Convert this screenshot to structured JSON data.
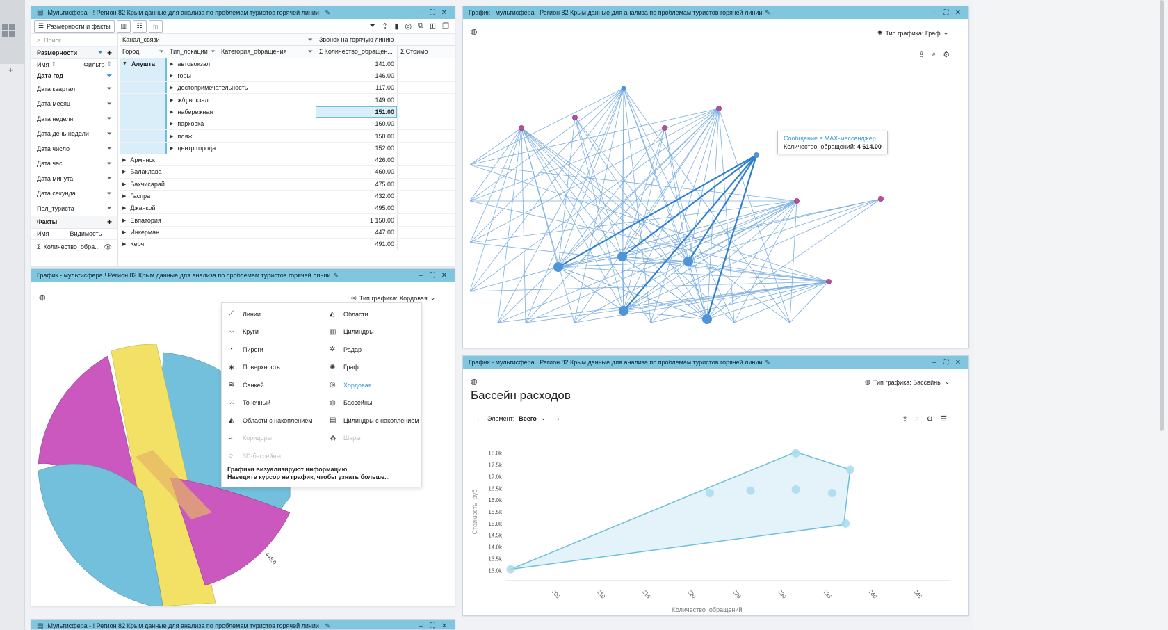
{
  "window_title": "Мультисфера - ! Регион 82 Крым данные для анализа по проблемам туристов горячей линии",
  "chart_window_title": "График - мультисфера ! Регион 82 Крым данные для анализа по проблемам туристов горячей линии",
  "toolbar": {
    "dims_facts_label": "Размерности и факты",
    "fn_label": "fn"
  },
  "dims_panel": {
    "search_placeholder": "Поиск",
    "dims_header": "Размерности",
    "name_col": "Имя",
    "filter_col": "Фильтр",
    "items": [
      "Дата год",
      "Дата квартал",
      "Дата месяц",
      "Дата неделя",
      "Дата день недели",
      "Дата число",
      "Дата час",
      "Дата минута",
      "Дата секунда",
      "Пол_туриста"
    ],
    "facts_header": "Факты",
    "facts_name_col": "Имя",
    "visibility_col": "Видимость",
    "fact_item": "Количество_обра..."
  },
  "grid": {
    "top_dim": "Канал_связи",
    "top_value": "Звонок на горячую линию",
    "col_city": "Город",
    "col_loc": "Тип_локации",
    "col_cat": "Категория_обращения",
    "col_count": "Количество_обращен...",
    "col_cost": "Стоимо",
    "expanded_city": "Алушта",
    "sub_rows": [
      {
        "loc": "автовокзал",
        "value": "141.00"
      },
      {
        "loc": "горы",
        "value": "146.00"
      },
      {
        "loc": "достопримечательность",
        "value": "117.00"
      },
      {
        "loc": "ж/д вокзал",
        "value": "149.00"
      },
      {
        "loc": "набережная",
        "value": "151.00"
      },
      {
        "loc": "парковка",
        "value": "160.00"
      },
      {
        "loc": "пляж",
        "value": "150.00"
      },
      {
        "loc": "центр города",
        "value": "152.00"
      }
    ],
    "city_rows": [
      {
        "city": "Армянск",
        "value": "426.00"
      },
      {
        "city": "Балаклава",
        "value": "460.00"
      },
      {
        "city": "Бахчисарай",
        "value": "475.00"
      },
      {
        "city": "Гаспра",
        "value": "432.00"
      },
      {
        "city": "Джанкой",
        "value": "495.00"
      },
      {
        "city": "Евпатория",
        "value": "1 150.00"
      },
      {
        "city": "Инкерман",
        "value": "447.00"
      },
      {
        "city": "Керч",
        "value": "491.00"
      }
    ]
  },
  "chord_panel": {
    "chart_type_label": "Тип графика: Хордовая",
    "chord_label": "445.0",
    "menu": {
      "items": [
        {
          "label": "Линии",
          "icon": "line-chart-icon",
          "glyph": "⟋"
        },
        {
          "label": "Области",
          "icon": "area-chart-icon",
          "glyph": "◭"
        },
        {
          "label": "Круги",
          "icon": "bubble-chart-icon",
          "glyph": "⁘"
        },
        {
          "label": "Цилиндры",
          "icon": "bar-chart-icon",
          "glyph": "▥"
        },
        {
          "label": "Пироги",
          "icon": "pie-chart-icon",
          "glyph": "◔"
        },
        {
          "label": "Радар",
          "icon": "radar-chart-icon",
          "glyph": "✲"
        },
        {
          "label": "Поверхность",
          "icon": "surface-chart-icon",
          "glyph": "◈"
        },
        {
          "label": "Граф",
          "icon": "graph-chart-icon",
          "glyph": "✺"
        },
        {
          "label": "Санкей",
          "icon": "sankey-chart-icon",
          "glyph": "≋"
        },
        {
          "label": "Хордовая",
          "icon": "chord-chart-icon",
          "glyph": "◎"
        },
        {
          "label": "Точечный",
          "icon": "scatter-chart-icon",
          "glyph": "⁙"
        },
        {
          "label": "Бассейны",
          "icon": "pool-chart-icon",
          "glyph": "◍"
        },
        {
          "label": "Области с накоплением",
          "icon": "stacked-area-icon",
          "glyph": "◭"
        },
        {
          "label": "Цилиндры с накоплением",
          "icon": "stacked-bar-icon",
          "glyph": "▤"
        },
        {
          "label": "Коридоры",
          "icon": "corridor-chart-icon",
          "glyph": "≈"
        },
        {
          "label": "Шары",
          "icon": "balls-chart-icon",
          "glyph": "⁂"
        },
        {
          "label": "3D-бассейны",
          "icon": "pool-3d-icon",
          "glyph": "◌"
        }
      ],
      "active": "Хордовая",
      "disabled": [
        "Коридоры",
        "Шары",
        "3D-бассейны"
      ],
      "info_line1": "Графики визуализируют информацию",
      "info_line2": "Наведите курсор на график, чтобы узнать больше..."
    }
  },
  "graph_panel": {
    "chart_type_label": "Тип графика: Граф",
    "tooltip_title": "Сообщение в MAX-мессенджер",
    "tooltip_value_label": "Количество_обращений:",
    "tooltip_value": "4 614.00"
  },
  "pool_panel": {
    "chart_type_label": "Тип графика: Бассейны",
    "title": "Бассейн расходов",
    "element_label": "Элемент:",
    "element_value": "Всего"
  },
  "chart_data": {
    "type": "scatter",
    "title": "Бассейн расходов",
    "xlabel": "Количество_обращений",
    "ylabel": "Стоимость_руб",
    "x_ticks": [
      "205",
      "210",
      "215",
      "220",
      "225",
      "230",
      "235",
      "240",
      "245"
    ],
    "y_ticks": [
      "13.0k",
      "13.5k",
      "14.0k",
      "14.5k",
      "15.0k",
      "15.5k",
      "16.0k",
      "16.5k",
      "17.0k",
      "17.5k",
      "18.0k"
    ],
    "xlim": [
      200,
      249
    ],
    "ylim": [
      12800,
      18200
    ],
    "points": [
      {
        "x": 200.5,
        "y": 13050
      },
      {
        "x": 222.5,
        "y": 16300
      },
      {
        "x": 227,
        "y": 16400
      },
      {
        "x": 232,
        "y": 18000
      },
      {
        "x": 232,
        "y": 16450
      },
      {
        "x": 236,
        "y": 16300
      },
      {
        "x": 237.5,
        "y": 15000
      },
      {
        "x": 238,
        "y": 17300
      }
    ],
    "hull": [
      [
        200.5,
        13050
      ],
      [
        222.5,
        16550
      ],
      [
        232,
        18050
      ],
      [
        238,
        17300
      ],
      [
        237.3,
        14950
      ]
    ],
    "grid": false,
    "colors": {
      "fill": "#e4f3fa",
      "stroke": "#6bbfdc",
      "point": "#a9d9ec"
    }
  }
}
